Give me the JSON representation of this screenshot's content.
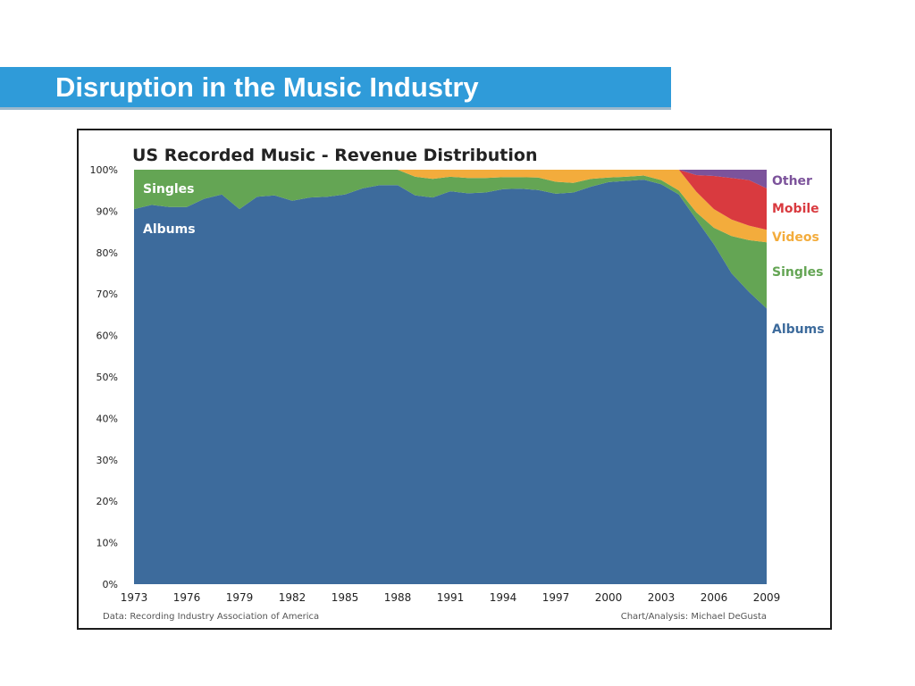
{
  "slide": {
    "title": "Disruption in the Music Industry"
  },
  "chart_data": {
    "type": "area",
    "stacked": true,
    "normalized": true,
    "title": "US Recorded Music - Revenue Distribution",
    "x_tick_labels": [
      "1973",
      "1976",
      "1979",
      "1982",
      "1985",
      "1988",
      "1991",
      "1994",
      "1997",
      "2000",
      "2003",
      "2006",
      "2009"
    ],
    "y_tick_labels": [
      "0%",
      "10%",
      "20%",
      "30%",
      "40%",
      "50%",
      "60%",
      "70%",
      "80%",
      "90%",
      "100%"
    ],
    "ylim": [
      0,
      100
    ],
    "xlim": [
      1973,
      2009
    ],
    "grid": false,
    "x": [
      1973,
      1974,
      1975,
      1976,
      1977,
      1978,
      1979,
      1980,
      1981,
      1982,
      1983,
      1984,
      1985,
      1986,
      1987,
      1988,
      1989,
      1990,
      1991,
      1992,
      1993,
      1994,
      1995,
      1996,
      1997,
      1998,
      1999,
      2000,
      2001,
      2002,
      2003,
      2004,
      2005,
      2006,
      2007,
      2008,
      2009
    ],
    "series": [
      {
        "name": "Albums",
        "color": "#3d6b9c",
        "values": [
          90.5,
          91.5,
          91,
          91,
          93,
          94,
          90.5,
          93.5,
          93.8,
          92.5,
          93.3,
          93.5,
          94,
          95.5,
          96.3,
          96.3,
          93.8,
          93.3,
          94.8,
          94.3,
          94.5,
          95.3,
          95.4,
          95.1,
          94.2,
          94.5,
          95.9,
          97,
          97.3,
          97.6,
          96.5,
          94,
          88,
          82,
          75,
          70.5,
          66.5
        ]
      },
      {
        "name": "Singles",
        "color": "#64a554",
        "values": [
          9.5,
          8.5,
          9,
          9,
          7,
          6,
          9.5,
          6.5,
          6.2,
          7.5,
          6.7,
          6.5,
          6,
          4.5,
          3.7,
          3.7,
          4.5,
          4.5,
          3.5,
          3.7,
          3.5,
          2.9,
          2.8,
          3,
          2.9,
          2.3,
          1.9,
          1.1,
          1,
          1,
          1,
          1,
          1.7,
          4,
          9,
          12.5,
          16
        ]
      },
      {
        "name": "Videos",
        "color": "#f3ac3c",
        "values": [
          0,
          0,
          0,
          0,
          0,
          0,
          0,
          0,
          0,
          0,
          0,
          0,
          0,
          0,
          0,
          0,
          1.7,
          2.2,
          1.7,
          2,
          2,
          1.8,
          1.8,
          1.9,
          2.9,
          3.2,
          2.2,
          1.9,
          1.7,
          1.4,
          2.5,
          5,
          5,
          4.5,
          4,
          3.5,
          3
        ]
      },
      {
        "name": "Mobile",
        "color": "#d93a3f",
        "values": [
          0,
          0,
          0,
          0,
          0,
          0,
          0,
          0,
          0,
          0,
          0,
          0,
          0,
          0,
          0,
          0,
          0,
          0,
          0,
          0,
          0,
          0,
          0,
          0,
          0,
          0,
          0,
          0,
          0,
          0,
          0,
          0,
          4,
          8,
          10,
          11,
          10
        ]
      },
      {
        "name": "Other",
        "color": "#7c539b",
        "values": [
          0,
          0,
          0,
          0,
          0,
          0,
          0,
          0,
          0,
          0,
          0,
          0,
          0,
          0,
          0,
          0,
          0,
          0,
          0,
          0,
          0,
          0,
          0,
          0,
          0,
          0,
          0,
          0,
          0,
          0,
          0,
          0,
          1.3,
          1.5,
          2,
          2.5,
          4.5
        ]
      }
    ],
    "in_chart_labels": {
      "singles": "Singles",
      "albums": "Albums"
    },
    "source": "Data: Recording Industry Association of America",
    "credit": "Chart/Analysis: Michael DeGusta"
  }
}
